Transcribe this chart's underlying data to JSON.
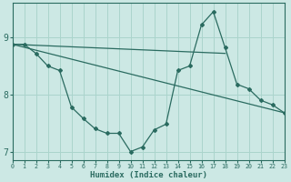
{
  "xlabel": "Humidex (Indice chaleur)",
  "bg_color": "#cce8e4",
  "grid_color": "#aad4cc",
  "line_color": "#2a6b60",
  "xlim": [
    0,
    23
  ],
  "ylim": [
    6.85,
    9.6
  ],
  "yticks": [
    7,
    8,
    9
  ],
  "xticks": [
    0,
    1,
    2,
    3,
    4,
    5,
    6,
    7,
    8,
    9,
    10,
    11,
    12,
    13,
    14,
    15,
    16,
    17,
    18,
    19,
    20,
    21,
    22,
    23
  ],
  "curve_x": [
    0,
    1,
    2,
    3,
    4,
    5,
    6,
    7,
    8,
    9,
    10,
    11,
    12,
    13,
    14,
    15,
    16,
    17,
    18,
    19,
    20,
    21,
    22,
    23
  ],
  "curve_y": [
    8.88,
    8.88,
    8.72,
    8.5,
    8.42,
    7.78,
    7.58,
    7.4,
    7.32,
    7.32,
    7.0,
    7.08,
    7.38,
    7.48,
    8.42,
    8.5,
    9.22,
    9.45,
    8.82,
    8.18,
    8.1,
    7.9,
    7.82,
    7.68
  ],
  "flat_line_x": [
    0,
    18
  ],
  "flat_line_y": [
    8.88,
    8.72
  ],
  "diag_line_x": [
    0,
    23
  ],
  "diag_line_y": [
    8.88,
    7.68
  ]
}
